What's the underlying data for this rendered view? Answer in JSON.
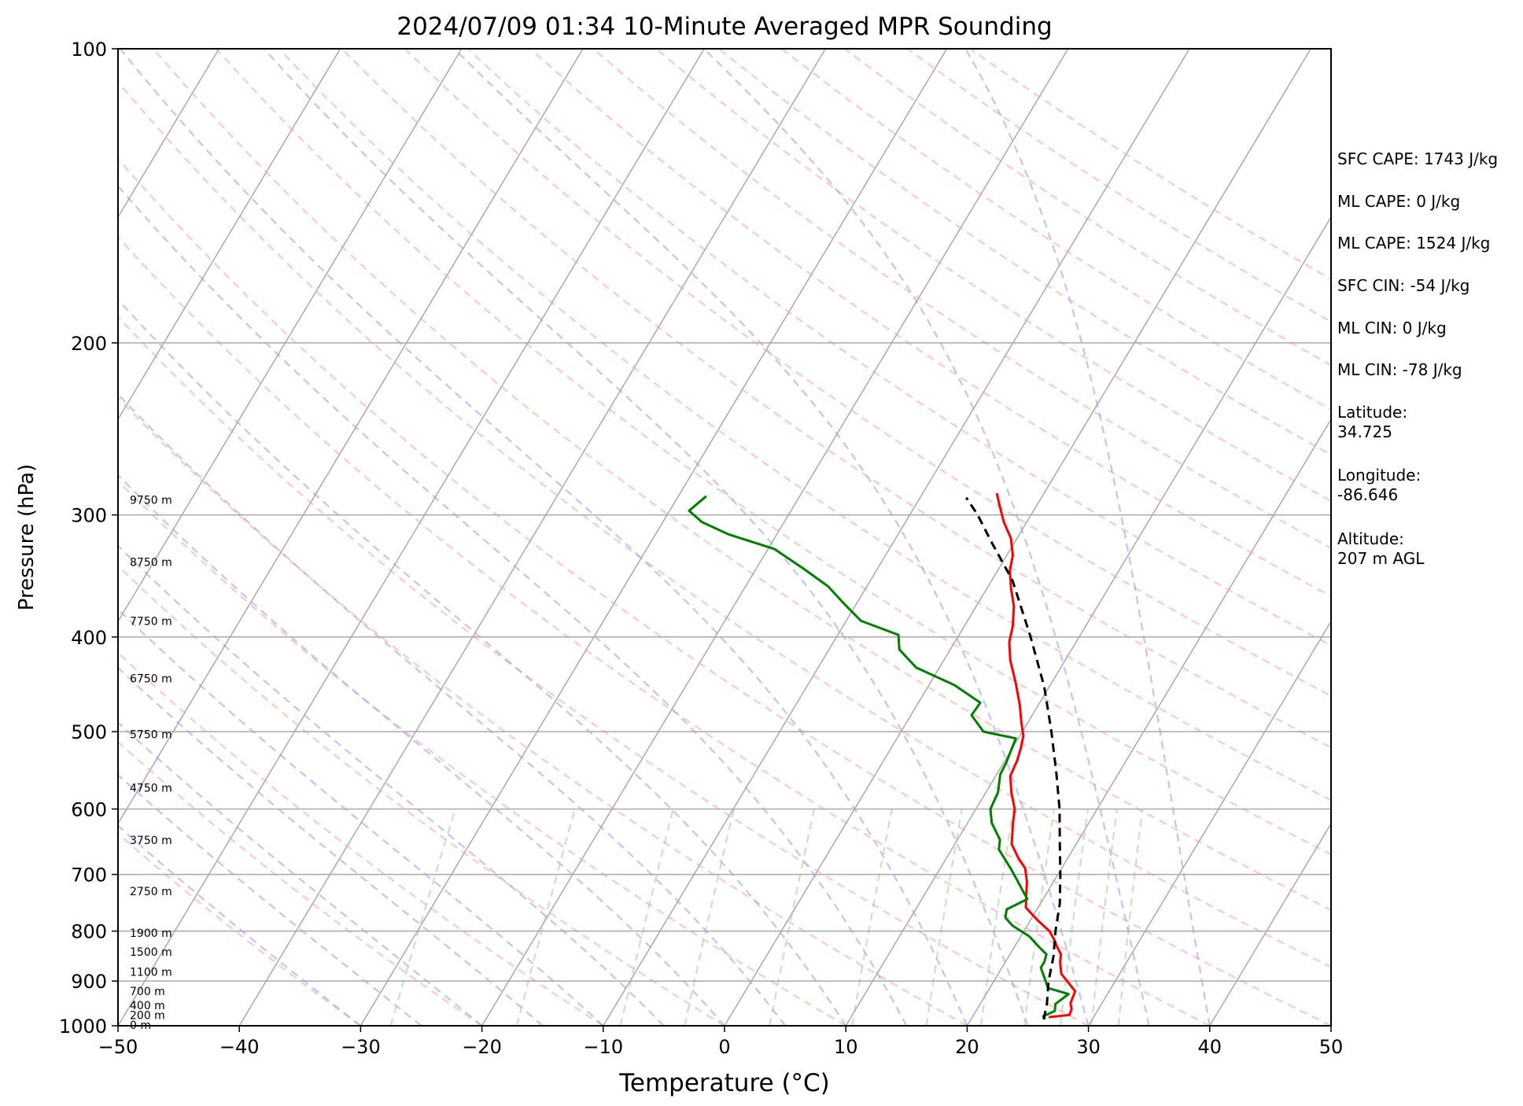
{
  "chart_data": {
    "type": "skew-t",
    "title": "2024/07/09 01:34 10-Minute Averaged MPR Sounding",
    "xlabel": "Temperature (°C)",
    "ylabel": "Pressure (hPa)",
    "xlim": [
      -50,
      50
    ],
    "ylim": [
      1000,
      100
    ],
    "y_scale": "log",
    "x_ticks": [
      "−50",
      "−40",
      "−30",
      "−20",
      "−10",
      "0",
      "10",
      "20",
      "30",
      "40",
      "50"
    ],
    "x_tick_values": [
      -50,
      -40,
      -30,
      -20,
      -10,
      0,
      10,
      20,
      30,
      40,
      50
    ],
    "y_ticks": [
      "1000",
      "900",
      "800",
      "700",
      "600",
      "500",
      "400",
      "300",
      "200",
      "100"
    ],
    "y_tick_values": [
      1000,
      900,
      800,
      700,
      600,
      500,
      400,
      300,
      200,
      100
    ],
    "grid": true,
    "colors": {
      "temperature": "#ff0000",
      "dewpoint": "#008000",
      "parcel": "#000000",
      "isotherm": "#a9a9a9",
      "dry_adiabat": "#ff9999",
      "moist_adiabat": "#9999ff",
      "mixing_ratio": "#99cc99"
    },
    "height_labels": [
      {
        "label": "0 m",
        "p": 1000
      },
      {
        "label": "200 m",
        "p": 977
      },
      {
        "label": "400 m",
        "p": 955
      },
      {
        "label": "700 m",
        "p": 923
      },
      {
        "label": "1100 m",
        "p": 882
      },
      {
        "label": "1500 m",
        "p": 842
      },
      {
        "label": "1900 m",
        "p": 805
      },
      {
        "label": "2750 m",
        "p": 730
      },
      {
        "label": "3750 m",
        "p": 647
      },
      {
        "label": "4750 m",
        "p": 572
      },
      {
        "label": "5750 m",
        "p": 504
      },
      {
        "label": "6750 m",
        "p": 442
      },
      {
        "label": "7750 m",
        "p": 386
      },
      {
        "label": "8750 m",
        "p": 336
      },
      {
        "label": "9750 m",
        "p": 290
      }
    ],
    "series": [
      {
        "name": "Temperature",
        "points": [
          [
            980,
            26.3
          ],
          [
            975,
            27.9
          ],
          [
            962,
            27.8
          ],
          [
            948,
            27.4
          ],
          [
            922,
            27.2
          ],
          [
            905,
            26.3
          ],
          [
            885,
            25.2
          ],
          [
            860,
            24.5
          ],
          [
            845,
            24.2
          ],
          [
            830,
            23.5
          ],
          [
            818,
            23.0
          ],
          [
            800,
            22.1
          ],
          [
            780,
            20.6
          ],
          [
            757,
            19.0
          ],
          [
            742,
            18.6
          ],
          [
            712,
            17.8
          ],
          [
            690,
            17.0
          ],
          [
            673,
            15.9
          ],
          [
            652,
            14.7
          ],
          [
            622,
            13.8
          ],
          [
            600,
            13.2
          ],
          [
            577,
            12.1
          ],
          [
            555,
            11.2
          ],
          [
            535,
            11.0
          ],
          [
            520,
            10.7
          ],
          [
            505,
            10.3
          ],
          [
            490,
            9.5
          ],
          [
            470,
            8.5
          ],
          [
            445,
            7.0
          ],
          [
            423,
            5.5
          ],
          [
            405,
            4.5
          ],
          [
            390,
            4.0
          ],
          [
            372,
            3.1
          ],
          [
            357,
            2.0
          ],
          [
            342,
            1.0
          ],
          [
            330,
            0.5
          ],
          [
            317,
            -0.5
          ],
          [
            305,
            -1.9
          ],
          [
            294,
            -3.0
          ],
          [
            285,
            -3.9
          ]
        ]
      },
      {
        "name": "Dewpoint",
        "points": [
          [
            985,
            26.1
          ],
          [
            978,
            25.8
          ],
          [
            966,
            26.5
          ],
          [
            950,
            26.2
          ],
          [
            928,
            26.8
          ],
          [
            915,
            24.8
          ],
          [
            893,
            24.0
          ],
          [
            872,
            23.2
          ],
          [
            860,
            23.2
          ],
          [
            845,
            23.0
          ],
          [
            830,
            22.0
          ],
          [
            810,
            20.7
          ],
          [
            790,
            18.8
          ],
          [
            775,
            17.8
          ],
          [
            760,
            17.5
          ],
          [
            742,
            18.7
          ],
          [
            720,
            17.5
          ],
          [
            690,
            15.8
          ],
          [
            660,
            13.9
          ],
          [
            645,
            13.5
          ],
          [
            620,
            12.0
          ],
          [
            600,
            11.2
          ],
          [
            577,
            11.0
          ],
          [
            553,
            10.3
          ],
          [
            537,
            10.2
          ],
          [
            523,
            10.0
          ],
          [
            508,
            9.8
          ],
          [
            500,
            6.8
          ],
          [
            481,
            5.0
          ],
          [
            467,
            5.1
          ],
          [
            448,
            2.1
          ],
          [
            430,
            -1.9
          ],
          [
            412,
            -4.2
          ],
          [
            398,
            -5.0
          ],
          [
            385,
            -8.8
          ],
          [
            370,
            -11.0
          ],
          [
            355,
            -13.2
          ],
          [
            340,
            -16.2
          ],
          [
            325,
            -19.5
          ],
          [
            314,
            -24.0
          ],
          [
            305,
            -26.8
          ],
          [
            297,
            -28.4
          ],
          [
            287,
            -27.7
          ]
        ]
      },
      {
        "name": "Parcel",
        "dashed": true,
        "points": [
          [
            985,
            26.0
          ],
          [
            950,
            25.5
          ],
          [
            900,
            24.5
          ],
          [
            850,
            23.7
          ],
          [
            800,
            22.6
          ],
          [
            750,
            21.6
          ],
          [
            700,
            20.2
          ],
          [
            650,
            18.6
          ],
          [
            600,
            16.9
          ],
          [
            550,
            14.8
          ],
          [
            500,
            12.4
          ],
          [
            450,
            9.6
          ],
          [
            400,
            6.0
          ],
          [
            350,
            1.7
          ],
          [
            320,
            -1.9
          ],
          [
            300,
            -4.4
          ],
          [
            288,
            -6.2
          ]
        ]
      }
    ]
  },
  "side_panel": {
    "sfc_cape": "SFC CAPE: 1743 J/kg",
    "ml_cape_1": "ML CAPE: 0 J/kg",
    "ml_cape_2": "ML CAPE: 1524 J/kg",
    "sfc_cin": "SFC CIN: -54 J/kg",
    "ml_cin_1": "ML CIN: 0 J/kg",
    "ml_cin_2": "ML CIN: -78 J/kg",
    "latitude": "Latitude:\n34.725",
    "longitude": "Longitude:\n-86.646",
    "altitude": "Altitude:\n207 m AGL"
  }
}
